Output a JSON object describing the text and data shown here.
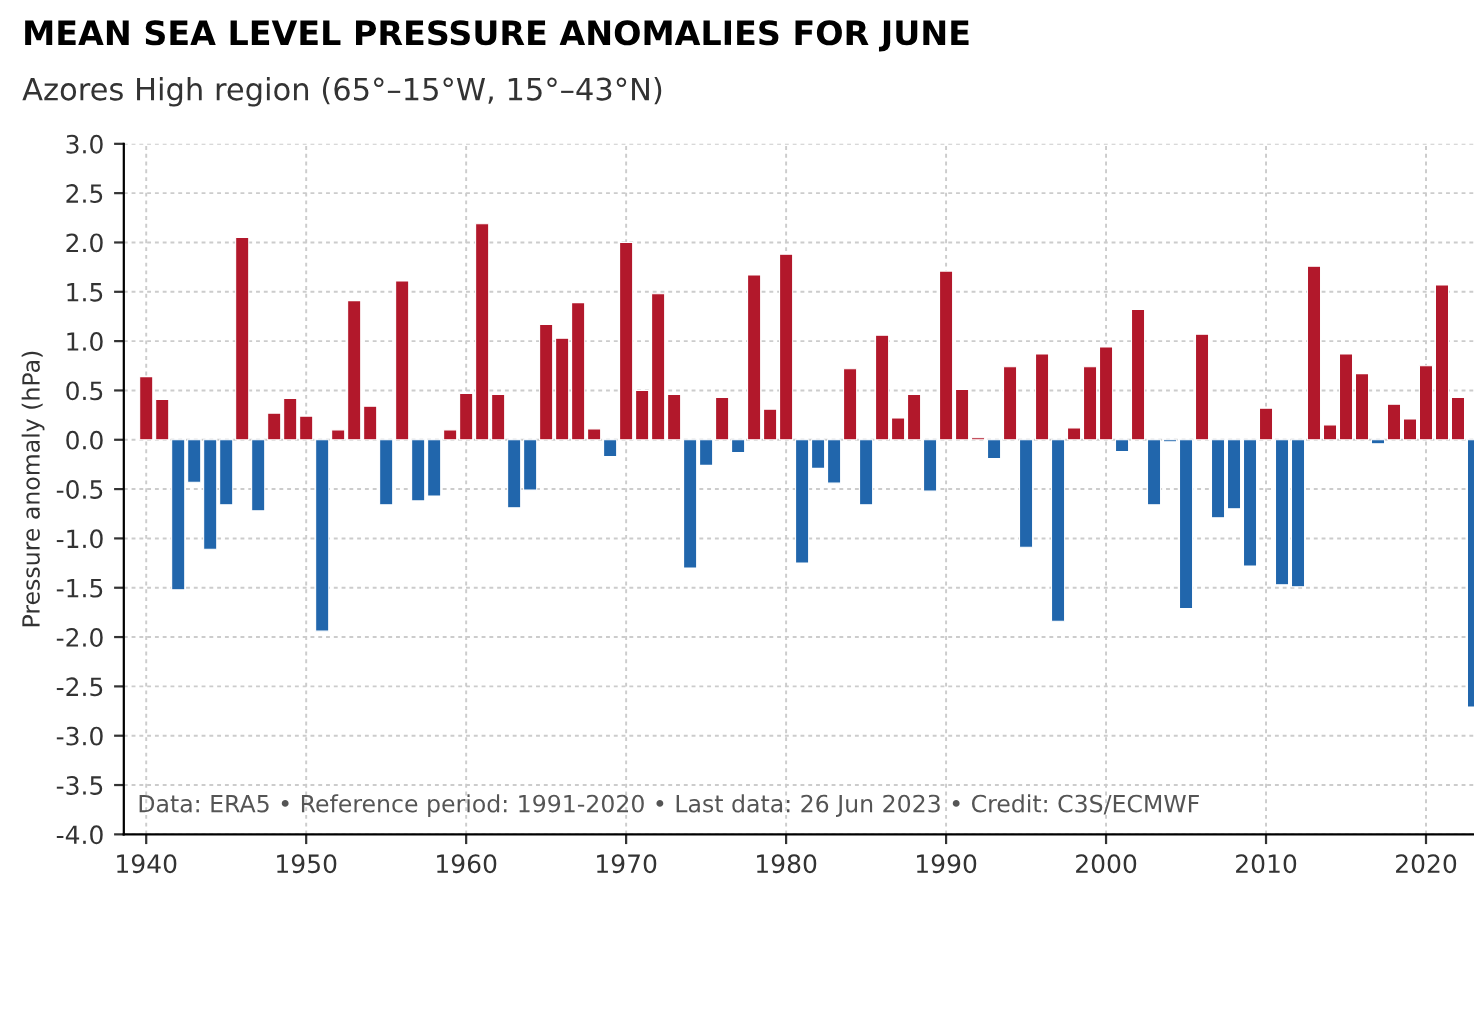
{
  "chart_data": {
    "type": "bar",
    "title": "MEAN SEA LEVEL PRESSURE ANOMALIES FOR JUNE",
    "subtitle": "Azores High region (65°–15°W, 15°–43°N)",
    "ylabel": "Pressure anomaly (hPa)",
    "annotations": [
      "Data: ERA5 • Reference period: 1991-2020 • Last data: 26 Jun 2023 • Credit: C3S/ECMWF"
    ],
    "x": [
      1940,
      1941,
      1942,
      1943,
      1944,
      1945,
      1946,
      1947,
      1948,
      1949,
      1950,
      1951,
      1952,
      1953,
      1954,
      1955,
      1956,
      1957,
      1958,
      1959,
      1960,
      1961,
      1962,
      1963,
      1964,
      1965,
      1966,
      1967,
      1968,
      1969,
      1970,
      1971,
      1972,
      1973,
      1974,
      1975,
      1976,
      1977,
      1978,
      1979,
      1980,
      1981,
      1982,
      1983,
      1984,
      1985,
      1986,
      1987,
      1988,
      1989,
      1990,
      1991,
      1992,
      1993,
      1994,
      1995,
      1996,
      1997,
      1998,
      1999,
      2000,
      2001,
      2002,
      2003,
      2004,
      2005,
      2006,
      2007,
      2008,
      2009,
      2010,
      2011,
      2012,
      2013,
      2014,
      2015,
      2016,
      2017,
      2018,
      2019,
      2020,
      2021,
      2022,
      2023
    ],
    "values": [
      0.64,
      0.41,
      -1.52,
      -0.43,
      -1.11,
      -0.66,
      2.05,
      -0.72,
      0.27,
      0.42,
      0.24,
      -1.94,
      0.1,
      1.41,
      0.34,
      -0.66,
      1.61,
      -0.62,
      -0.57,
      0.1,
      0.47,
      2.19,
      0.46,
      -0.69,
      -0.51,
      1.17,
      1.03,
      1.39,
      0.11,
      -0.17,
      2.0,
      0.5,
      1.48,
      0.46,
      -1.3,
      -0.26,
      0.43,
      -0.13,
      1.67,
      0.31,
      1.88,
      -1.25,
      -0.29,
      -0.44,
      0.72,
      -0.66,
      1.06,
      0.22,
      0.46,
      -0.52,
      1.71,
      0.51,
      0.02,
      -0.19,
      0.74,
      -1.09,
      0.87,
      -1.84,
      0.12,
      0.74,
      0.94,
      -0.12,
      1.32,
      -0.66,
      -0.02,
      -1.71,
      1.07,
      -0.79,
      -0.7,
      -1.28,
      0.32,
      -1.47,
      -1.49,
      1.76,
      0.15,
      0.87,
      0.67,
      -0.04,
      0.36,
      0.21,
      0.75,
      1.57,
      0.43,
      -2.71
    ],
    "colors": [
      "#b2182b",
      "#b2182b",
      "#2166ac",
      "#2166ac",
      "#2166ac",
      "#2166ac",
      "#b2182b",
      "#2166ac",
      "#b2182b",
      "#b2182b",
      "#b2182b",
      "#2166ac",
      "#b2182b",
      "#b2182b",
      "#b2182b",
      "#2166ac",
      "#b2182b",
      "#2166ac",
      "#2166ac",
      "#b2182b",
      "#b2182b",
      "#b2182b",
      "#b2182b",
      "#2166ac",
      "#2166ac",
      "#b2182b",
      "#b2182b",
      "#b2182b",
      "#b2182b",
      "#2166ac",
      "#b2182b",
      "#b2182b",
      "#b2182b",
      "#b2182b",
      "#2166ac",
      "#2166ac",
      "#b2182b",
      "#2166ac",
      "#b2182b",
      "#b2182b",
      "#b2182b",
      "#2166ac",
      "#2166ac",
      "#2166ac",
      "#b2182b",
      "#2166ac",
      "#b2182b",
      "#b2182b",
      "#b2182b",
      "#2166ac",
      "#b2182b",
      "#b2182b",
      "#b2182b",
      "#2166ac",
      "#b2182b",
      "#2166ac",
      "#b2182b",
      "#2166ac",
      "#b2182b",
      "#b2182b",
      "#b2182b",
      "#2166ac",
      "#b2182b",
      "#2166ac",
      "#2166ac",
      "#2166ac",
      "#b2182b",
      "#2166ac",
      "#2166ac",
      "#2166ac",
      "#b2182b",
      "#2166ac",
      "#2166ac",
      "#b2182b",
      "#b2182b",
      "#b2182b",
      "#b2182b",
      "#2166ac",
      "#b2182b",
      "#b2182b",
      "#b2182b",
      "#b2182b",
      "#b2182b",
      "#2166ac"
    ],
    "xlim": [
      1938.6,
      2023
    ],
    "xticks": [
      1940,
      1950,
      1960,
      1970,
      1980,
      1990,
      2000,
      2010,
      2020
    ],
    "ylim": [
      -4.0,
      3.0
    ],
    "yticks": [
      {
        "value": -4.0,
        "label": "-4.0"
      },
      {
        "value": -3.5,
        "label": "-3.5"
      },
      {
        "value": -3.0,
        "label": "-3.0"
      },
      {
        "value": -2.5,
        "label": "-2.5"
      },
      {
        "value": -2.0,
        "label": "-2.0"
      },
      {
        "value": -1.5,
        "label": "-1.5"
      },
      {
        "value": -1.0,
        "label": "-1.0"
      },
      {
        "value": -0.5,
        "label": "-0.5"
      },
      {
        "value": 0.0,
        "label": "0.0"
      },
      {
        "value": 0.5,
        "label": "0.5"
      },
      {
        "value": 1.0,
        "label": "1.0"
      },
      {
        "value": 1.5,
        "label": "1.5"
      },
      {
        "value": 2.0,
        "label": "2.0"
      },
      {
        "value": 2.5,
        "label": "2.5"
      },
      {
        "value": 3.0,
        "label": "3.0"
      }
    ],
    "grid": true,
    "legend": false
  }
}
